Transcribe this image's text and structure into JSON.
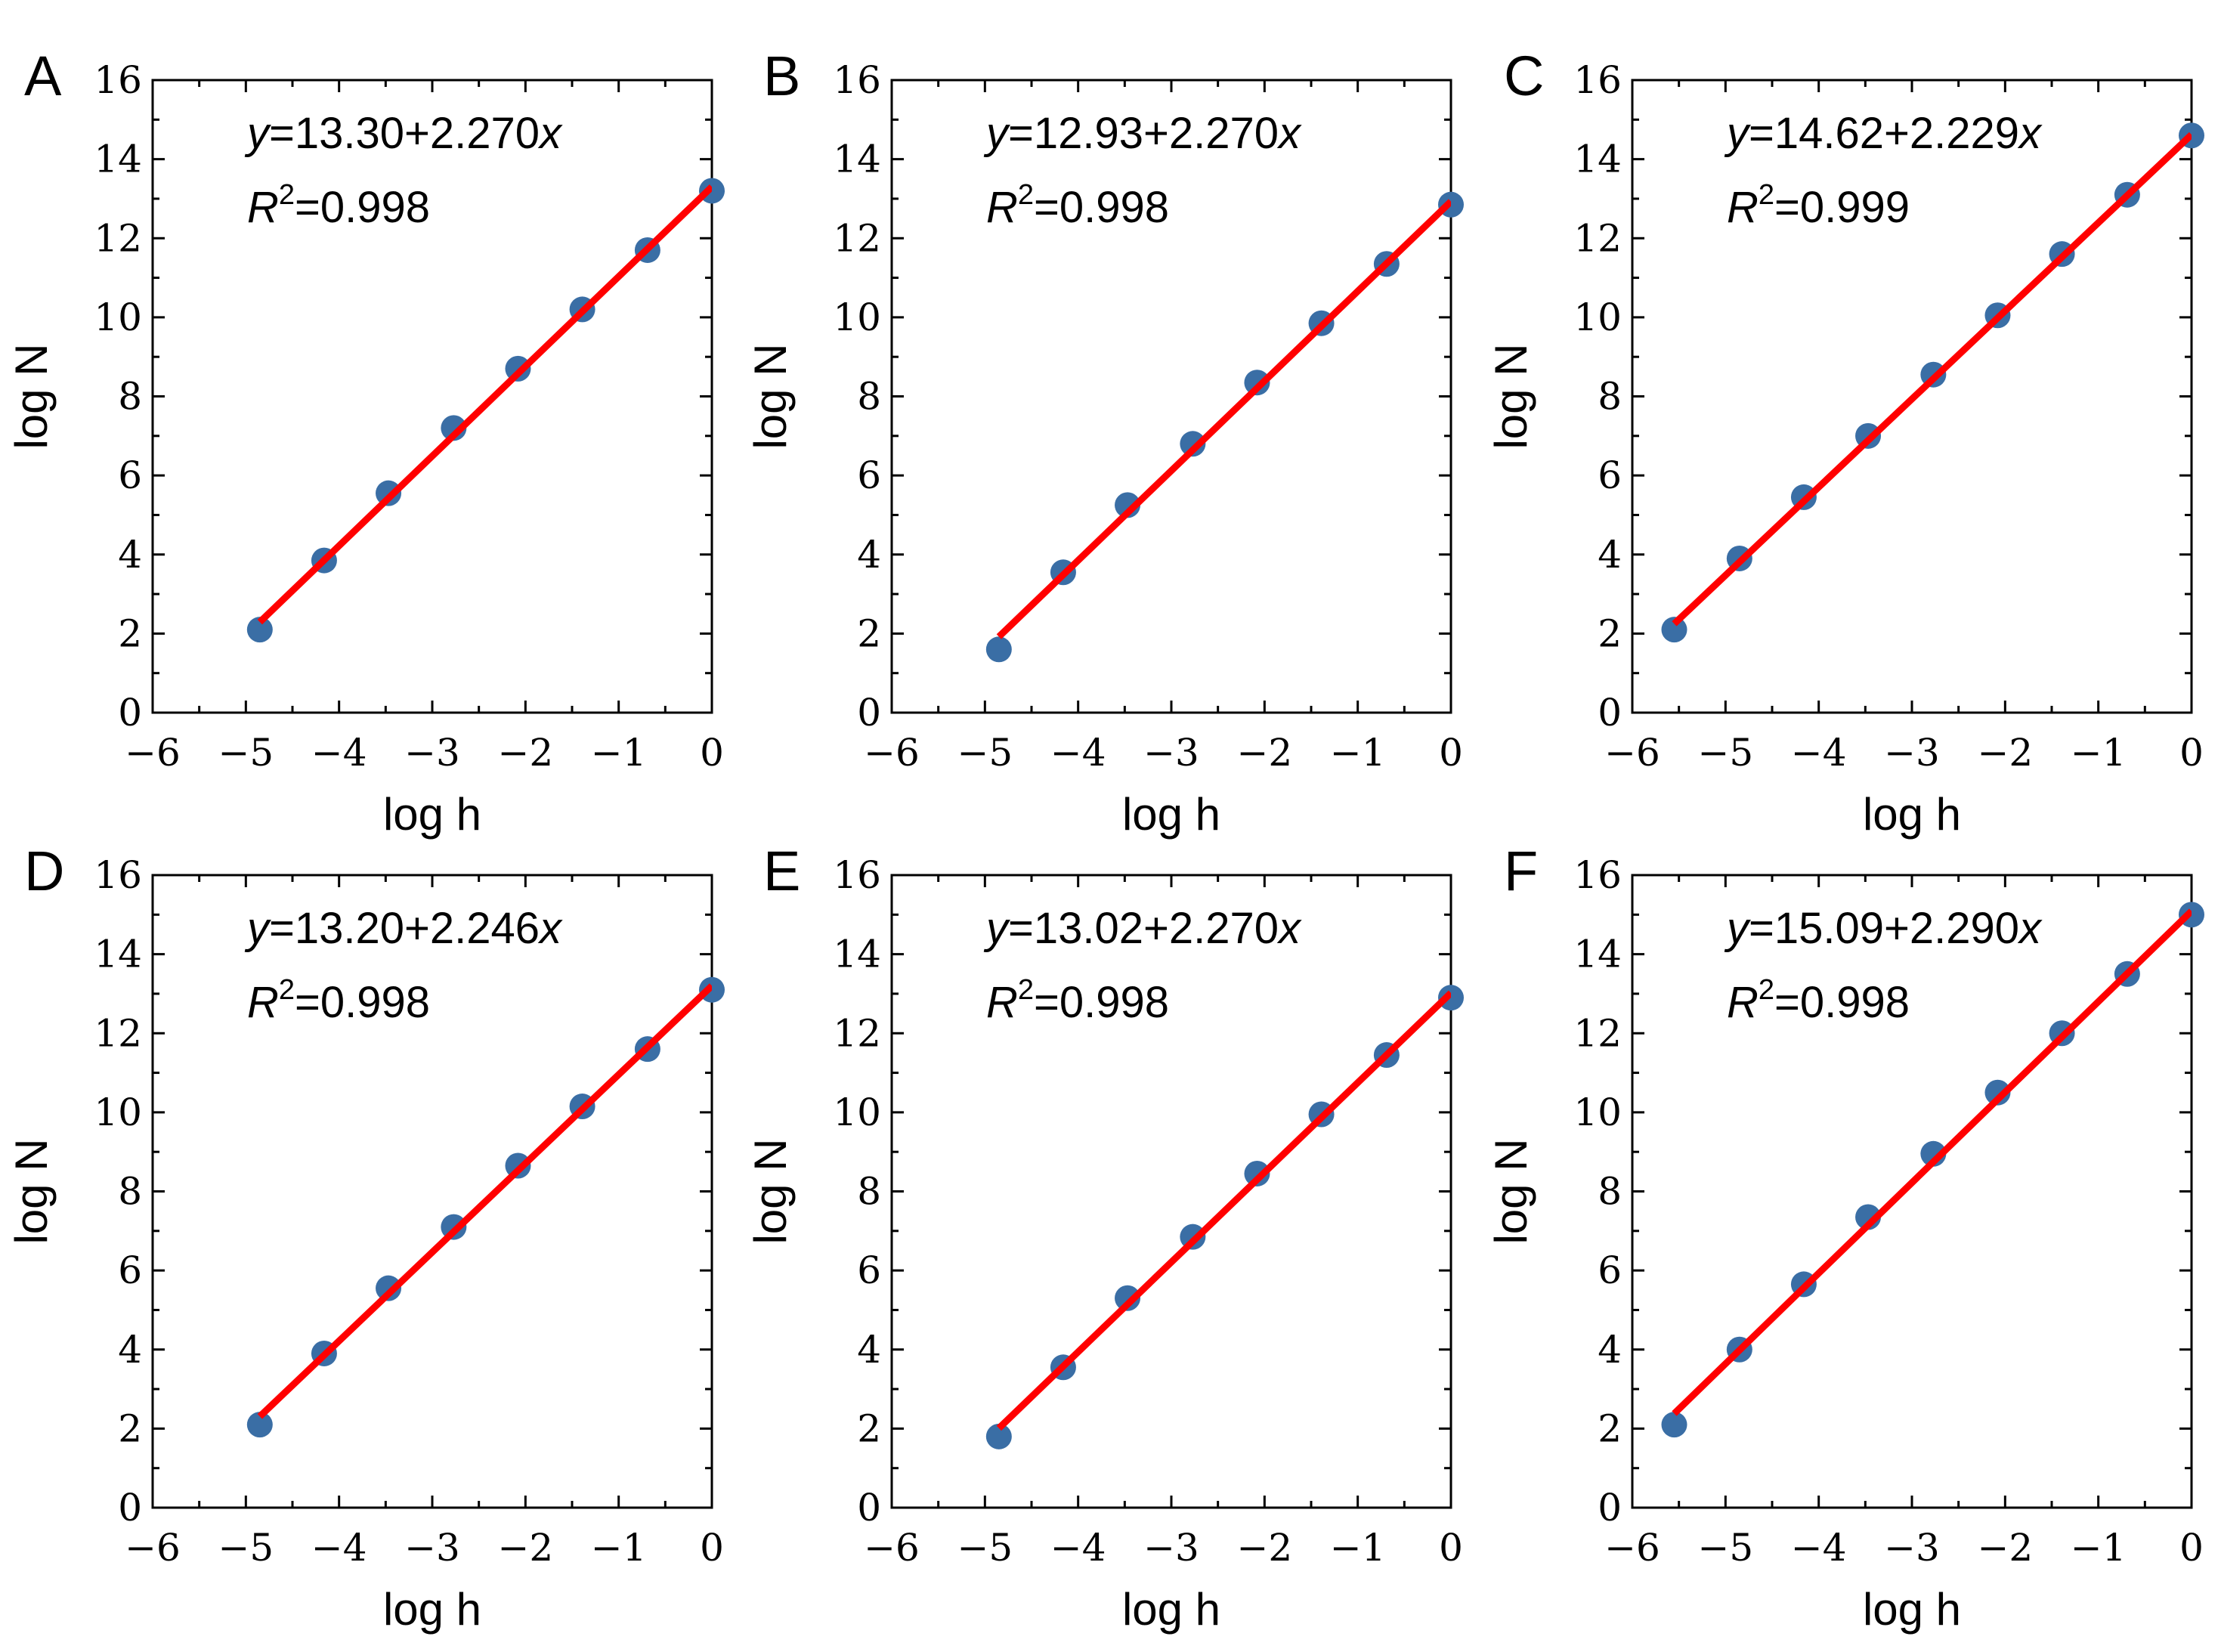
{
  "chart_data": [
    {
      "type": "scatter",
      "panel": "A",
      "xlabel": "log h",
      "ylabel": "log N",
      "xlim": [
        -6,
        0
      ],
      "ylim": [
        0,
        16
      ],
      "xticks": [
        "−6",
        "−5",
        "−4",
        "−3",
        "−2",
        "−1",
        "0"
      ],
      "yticks": [
        "0",
        "2",
        "4",
        "6",
        "8",
        "10",
        "12",
        "14",
        "16"
      ],
      "equation": {
        "y": "y",
        "rhs": "=13.30+2.270",
        "x": "x",
        "r": "R",
        "sup": "2",
        "r2": "=0.998"
      },
      "fit": {
        "intercept": 13.3,
        "slope": 2.27
      },
      "points": {
        "x": [
          -4.85,
          -4.16,
          -3.47,
          -2.77,
          -2.08,
          -1.39,
          -0.69,
          0.0
        ],
        "y": [
          2.1,
          3.85,
          5.55,
          7.2,
          8.7,
          10.2,
          11.7,
          13.2
        ]
      }
    },
    {
      "type": "scatter",
      "panel": "B",
      "xlabel": "log h",
      "ylabel": "log N",
      "xlim": [
        -6,
        0
      ],
      "ylim": [
        0,
        16
      ],
      "xticks": [
        "−6",
        "−5",
        "−4",
        "−3",
        "−2",
        "−1",
        "0"
      ],
      "yticks": [
        "0",
        "2",
        "4",
        "6",
        "8",
        "10",
        "12",
        "14",
        "16"
      ],
      "equation": {
        "y": "y",
        "rhs": "=12.93+2.270",
        "x": "x",
        "r": "R",
        "sup": "2",
        "r2": "=0.998"
      },
      "fit": {
        "intercept": 12.93,
        "slope": 2.27
      },
      "points": {
        "x": [
          -4.85,
          -4.16,
          -3.47,
          -2.77,
          -2.08,
          -1.39,
          -0.69,
          0.0
        ],
        "y": [
          1.6,
          3.55,
          5.25,
          6.8,
          8.35,
          9.85,
          11.35,
          12.85
        ]
      }
    },
    {
      "type": "scatter",
      "panel": "C",
      "xlabel": "log h",
      "ylabel": "log N",
      "xlim": [
        -6,
        0
      ],
      "ylim": [
        0,
        16
      ],
      "xticks": [
        "−6",
        "−5",
        "−4",
        "−3",
        "−2",
        "−1",
        "0"
      ],
      "yticks": [
        "0",
        "2",
        "4",
        "6",
        "8",
        "10",
        "12",
        "14",
        "16"
      ],
      "equation": {
        "y": "y",
        "rhs": "=14.62+2.229",
        "x": "x",
        "r": "R",
        "sup": "2",
        "r2": "=0.999"
      },
      "fit": {
        "intercept": 14.62,
        "slope": 2.229
      },
      "points": {
        "x": [
          -5.55,
          -4.85,
          -4.16,
          -3.47,
          -2.77,
          -2.08,
          -1.39,
          -0.69,
          0.0
        ],
        "y": [
          2.1,
          3.9,
          5.45,
          7.0,
          8.55,
          10.05,
          11.6,
          13.1,
          14.6
        ]
      }
    },
    {
      "type": "scatter",
      "panel": "D",
      "xlabel": "log h",
      "ylabel": "log N",
      "xlim": [
        -6,
        0
      ],
      "ylim": [
        0,
        16
      ],
      "xticks": [
        "−6",
        "−5",
        "−4",
        "−3",
        "−2",
        "−1",
        "0"
      ],
      "yticks": [
        "0",
        "2",
        "4",
        "6",
        "8",
        "10",
        "12",
        "14",
        "16"
      ],
      "equation": {
        "y": "y",
        "rhs": "=13.20+2.246",
        "x": "x",
        "r": "R",
        "sup": "2",
        "r2": "=0.998"
      },
      "fit": {
        "intercept": 13.2,
        "slope": 2.246
      },
      "points": {
        "x": [
          -4.85,
          -4.16,
          -3.47,
          -2.77,
          -2.08,
          -1.39,
          -0.69,
          0.0
        ],
        "y": [
          2.1,
          3.9,
          5.55,
          7.1,
          8.65,
          10.15,
          11.6,
          13.1
        ]
      }
    },
    {
      "type": "scatter",
      "panel": "E",
      "xlabel": "log h",
      "ylabel": "log N",
      "xlim": [
        -6,
        0
      ],
      "ylim": [
        0,
        16
      ],
      "xticks": [
        "−6",
        "−5",
        "−4",
        "−3",
        "−2",
        "−1",
        "0"
      ],
      "yticks": [
        "0",
        "2",
        "4",
        "6",
        "8",
        "10",
        "12",
        "14",
        "16"
      ],
      "equation": {
        "y": "y",
        "rhs": "=13.02+2.270",
        "x": "x",
        "r": "R",
        "sup": "2",
        "r2": "=0.998"
      },
      "fit": {
        "intercept": 13.02,
        "slope": 2.27
      },
      "points": {
        "x": [
          -4.85,
          -4.16,
          -3.47,
          -2.77,
          -2.08,
          -1.39,
          -0.69,
          0.0
        ],
        "y": [
          1.8,
          3.55,
          5.3,
          6.85,
          8.45,
          9.95,
          11.45,
          12.9
        ]
      }
    },
    {
      "type": "scatter",
      "panel": "F",
      "xlabel": "log h",
      "ylabel": "log N",
      "xlim": [
        -6,
        0
      ],
      "ylim": [
        0,
        16
      ],
      "xticks": [
        "−6",
        "−5",
        "−4",
        "−3",
        "−2",
        "−1",
        "0"
      ],
      "yticks": [
        "0",
        "2",
        "4",
        "6",
        "8",
        "10",
        "12",
        "14",
        "16"
      ],
      "equation": {
        "y": "y",
        "rhs": "=15.09+2.290",
        "x": "x",
        "r": "R",
        "sup": "2",
        "r2": "=0.998"
      },
      "fit": {
        "intercept": 15.09,
        "slope": 2.29
      },
      "points": {
        "x": [
          -5.55,
          -4.85,
          -4.16,
          -3.47,
          -2.77,
          -2.08,
          -1.39,
          -0.69,
          0.0
        ],
        "y": [
          2.1,
          4.0,
          5.65,
          7.35,
          8.95,
          10.5,
          12.0,
          13.5,
          15.0
        ]
      }
    }
  ],
  "colors": {
    "point": "#3a6ea5",
    "line": "#ff0000",
    "axis": "#000000"
  }
}
